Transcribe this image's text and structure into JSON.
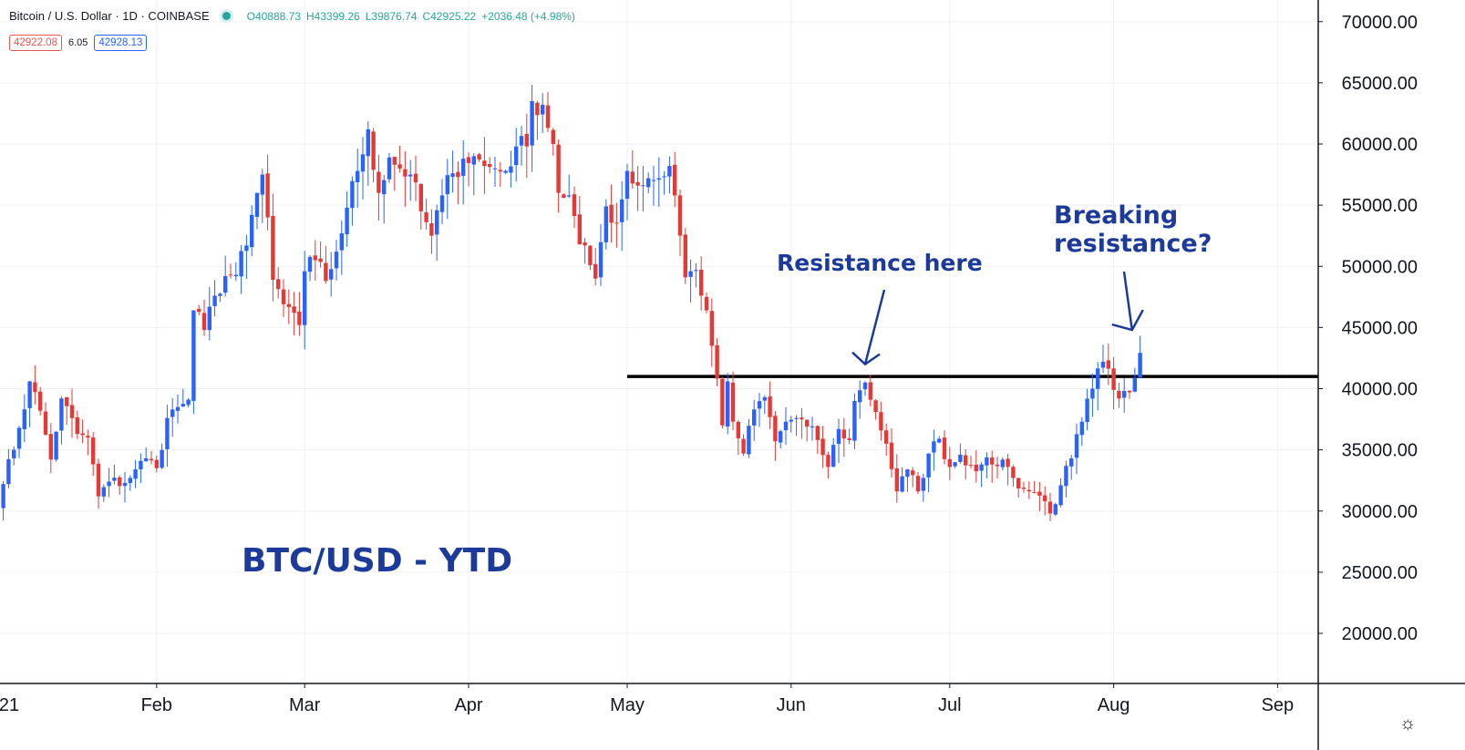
{
  "header": {
    "symbol": "Bitcoin / U.S. Dollar · 1D · COINBASE",
    "open": "O40888.73",
    "high": "H43399.26",
    "low": "L39876.74",
    "close": "C42925.22",
    "change": "+2036.48 (+4.98%)",
    "bid": "42922.08",
    "spread": "6.05",
    "ask": "42928.13"
  },
  "colors": {
    "up": "#2962ff",
    "down": "#e53935",
    "annotation": "#1b3a9a",
    "line": "#000000",
    "grid": "#eef0f3"
  },
  "icons": {
    "settings": "gear-icon",
    "live": "status-dot-icon"
  },
  "chart_data": {
    "type": "candlestick",
    "title": "BTC/USD - YTD",
    "x_tick_labels": [
      "21",
      "Feb",
      "Mar",
      "Apr",
      "May",
      "Jun",
      "Jul",
      "Aug",
      "Sep"
    ],
    "y_tick_labels": [
      "20000.00",
      "25000.00",
      "30000.00",
      "35000.00",
      "40000.00",
      "45000.00",
      "50000.00",
      "55000.00",
      "60000.00",
      "65000.00",
      "70000.00"
    ],
    "ylim": [
      15000,
      72000
    ],
    "x_range": [
      "2021-01-01",
      "2021-09-06"
    ],
    "grid": true,
    "resistance_level": 41000,
    "resistance_start": "2021-05-01",
    "annotations": [
      {
        "text": "Resistance here",
        "target_date": "2021-06-15",
        "target_value": 42000
      },
      {
        "text_line1": "Breaking",
        "text_line2": "resistance?",
        "target_date": "2021-08-05",
        "target_value": 44500
      }
    ],
    "close_anchors": [
      [
        "2021-01-01",
        29300
      ],
      [
        "2021-01-03",
        32200
      ],
      [
        "2021-01-06",
        36800
      ],
      [
        "2021-01-08",
        40600
      ],
      [
        "2021-01-10",
        38200
      ],
      [
        "2021-01-12",
        34200
      ],
      [
        "2021-01-14",
        39200
      ],
      [
        "2021-01-17",
        36300
      ],
      [
        "2021-01-19",
        36000
      ],
      [
        "2021-01-21",
        31200
      ],
      [
        "2021-01-23",
        32400
      ],
      [
        "2021-01-26",
        32300
      ],
      [
        "2021-01-28",
        33400
      ],
      [
        "2021-01-30",
        34300
      ],
      [
        "2021-02-01",
        33500
      ],
      [
        "2021-02-03",
        37600
      ],
      [
        "2021-02-05",
        38500
      ],
      [
        "2021-02-07",
        39100
      ],
      [
        "2021-02-08",
        46400
      ],
      [
        "2021-02-10",
        44800
      ],
      [
        "2021-02-12",
        47600
      ],
      [
        "2021-02-14",
        49200
      ],
      [
        "2021-02-16",
        49300
      ],
      [
        "2021-02-18",
        51700
      ],
      [
        "2021-02-20",
        56000
      ],
      [
        "2021-02-21",
        57500
      ],
      [
        "2021-02-22",
        54000
      ],
      [
        "2021-02-23",
        48900
      ],
      [
        "2021-02-25",
        46900
      ],
      [
        "2021-02-27",
        46200
      ],
      [
        "2021-02-28",
        45200
      ],
      [
        "2021-03-01",
        49600
      ],
      [
        "2021-03-03",
        50500
      ],
      [
        "2021-03-05",
        48800
      ],
      [
        "2021-03-07",
        51200
      ],
      [
        "2021-03-09",
        54800
      ],
      [
        "2021-03-11",
        57800
      ],
      [
        "2021-03-13",
        61200
      ],
      [
        "2021-03-15",
        56000
      ],
      [
        "2021-03-17",
        58900
      ],
      [
        "2021-03-19",
        58000
      ],
      [
        "2021-03-21",
        57500
      ],
      [
        "2021-03-23",
        54500
      ],
      [
        "2021-03-25",
        52500
      ],
      [
        "2021-03-27",
        55800
      ],
      [
        "2021-03-29",
        57600
      ],
      [
        "2021-03-31",
        58800
      ],
      [
        "2021-04-02",
        59000
      ],
      [
        "2021-04-04",
        58200
      ],
      [
        "2021-04-06",
        58000
      ],
      [
        "2021-04-08",
        57800
      ],
      [
        "2021-04-10",
        59800
      ],
      [
        "2021-04-12",
        59800
      ],
      [
        "2021-04-13",
        63500
      ],
      [
        "2021-04-15",
        63200
      ],
      [
        "2021-04-17",
        60000
      ],
      [
        "2021-04-18",
        56000
      ],
      [
        "2021-04-20",
        55800
      ],
      [
        "2021-04-22",
        51800
      ],
      [
        "2021-04-24",
        50100
      ],
      [
        "2021-04-25",
        49000
      ],
      [
        "2021-04-27",
        54900
      ],
      [
        "2021-04-29",
        53500
      ],
      [
        "2021-05-01",
        57800
      ],
      [
        "2021-05-03",
        56600
      ],
      [
        "2021-05-05",
        57200
      ],
      [
        "2021-05-07",
        57200
      ],
      [
        "2021-05-09",
        58200
      ],
      [
        "2021-05-10",
        55800
      ],
      [
        "2021-05-12",
        49100
      ],
      [
        "2021-05-14",
        49700
      ],
      [
        "2021-05-16",
        46400
      ],
      [
        "2021-05-17",
        43500
      ],
      [
        "2021-05-19",
        37000
      ],
      [
        "2021-05-20",
        40600
      ],
      [
        "2021-05-21",
        37300
      ],
      [
        "2021-05-23",
        34700
      ],
      [
        "2021-05-25",
        38300
      ],
      [
        "2021-05-27",
        39300
      ],
      [
        "2021-05-29",
        35700
      ],
      [
        "2021-05-31",
        37300
      ],
      [
        "2021-06-02",
        37600
      ],
      [
        "2021-06-04",
        36900
      ],
      [
        "2021-06-06",
        35800
      ],
      [
        "2021-06-08",
        33600
      ],
      [
        "2021-06-10",
        36700
      ],
      [
        "2021-06-12",
        35800
      ],
      [
        "2021-06-13",
        39000
      ],
      [
        "2021-06-15",
        40500
      ],
      [
        "2021-06-17",
        38100
      ],
      [
        "2021-06-19",
        35500
      ],
      [
        "2021-06-21",
        31600
      ],
      [
        "2021-06-23",
        33400
      ],
      [
        "2021-06-25",
        31600
      ],
      [
        "2021-06-27",
        34700
      ],
      [
        "2021-06-29",
        35900
      ],
      [
        "2021-07-01",
        33600
      ],
      [
        "2021-07-03",
        34600
      ],
      [
        "2021-07-05",
        33700
      ],
      [
        "2021-07-07",
        33800
      ],
      [
        "2021-07-09",
        33800
      ],
      [
        "2021-07-11",
        34200
      ],
      [
        "2021-07-13",
        32700
      ],
      [
        "2021-07-15",
        31800
      ],
      [
        "2021-07-17",
        31500
      ],
      [
        "2021-07-19",
        30800
      ],
      [
        "2021-07-20",
        29800
      ],
      [
        "2021-07-22",
        32100
      ],
      [
        "2021-07-24",
        34300
      ],
      [
        "2021-07-26",
        37300
      ],
      [
        "2021-07-28",
        40000
      ],
      [
        "2021-07-30",
        42200
      ],
      [
        "2021-08-01",
        39900
      ],
      [
        "2021-08-02",
        39200
      ],
      [
        "2021-08-04",
        39700
      ],
      [
        "2021-08-05",
        40900
      ],
      [
        "2021-08-06",
        42925
      ]
    ]
  },
  "toolbar": {
    "settings_label": "☼"
  }
}
